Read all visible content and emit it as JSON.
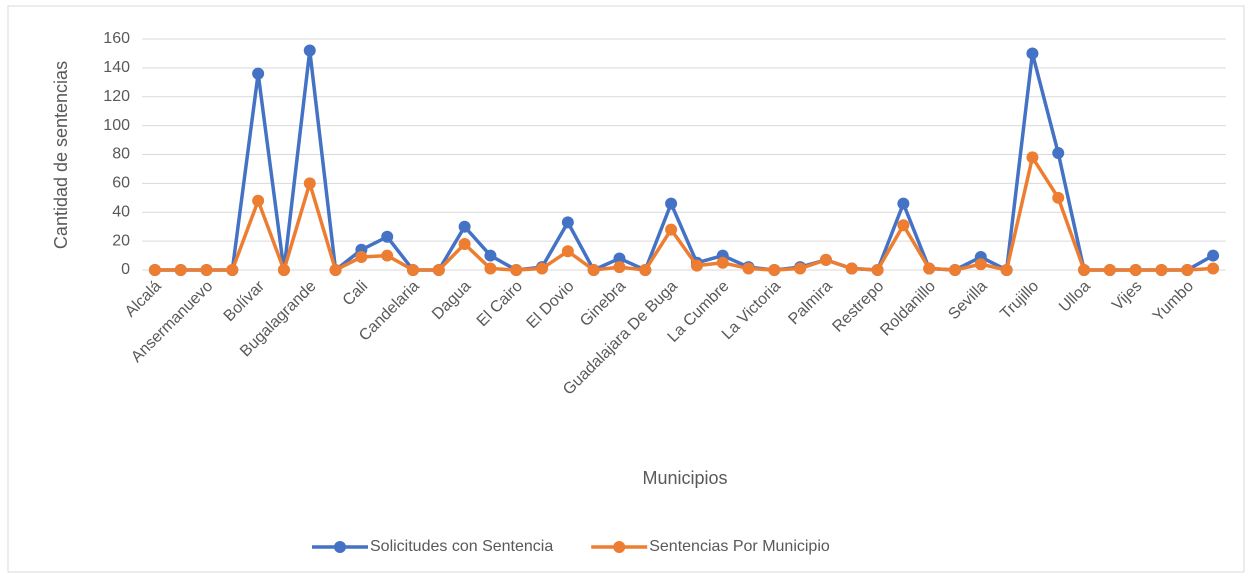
{
  "chart_data": {
    "type": "line",
    "x_label": "Municipios",
    "y_label": "Cantidad de sentencias",
    "categories": [
      "Alcalá",
      null,
      "Ansermanuevo",
      null,
      "Bolívar",
      null,
      "Bugalagrande",
      null,
      "Cali",
      null,
      "Candelaria",
      null,
      "Dagua",
      null,
      "El Cairo",
      null,
      "El Dovio",
      null,
      "Ginebra",
      null,
      "Guadalajara De Buga",
      null,
      "La Cumbre",
      null,
      "La Victoria",
      null,
      "Palmira",
      null,
      "Restrepo",
      null,
      "Roldanillo",
      null,
      "Sevilla",
      null,
      "Trujillo",
      null,
      "Ulloa",
      null,
      "Vijes",
      null,
      "Yumbo",
      null
    ],
    "series": [
      {
        "name": "Solicitudes con Sentencia",
        "color": "#4472c4",
        "values": [
          0,
          0,
          0,
          0,
          136,
          0,
          152,
          0,
          14,
          23,
          0,
          0,
          30,
          10,
          0,
          2,
          33,
          0,
          8,
          0,
          46,
          5,
          10,
          2,
          0,
          2,
          7,
          1,
          0,
          46,
          1,
          0,
          9,
          0,
          150,
          81,
          0,
          0,
          0,
          0,
          0,
          10
        ]
      },
      {
        "name": "Sentencias Por Municipio",
        "color": "#ed7d31",
        "values": [
          0,
          0,
          0,
          0,
          48,
          0,
          60,
          0,
          9,
          10,
          0,
          0,
          18,
          1,
          0,
          1,
          13,
          0,
          2,
          0,
          28,
          3,
          5,
          1,
          0,
          1,
          7,
          1,
          0,
          31,
          1,
          0,
          4,
          0,
          78,
          50,
          0,
          0,
          0,
          0,
          0,
          1
        ]
      }
    ],
    "ylim": [
      0,
      160
    ],
    "yticks": [
      0,
      20,
      40,
      60,
      80,
      100,
      120,
      140,
      160
    ],
    "grid": true,
    "legend": "bottom"
  }
}
